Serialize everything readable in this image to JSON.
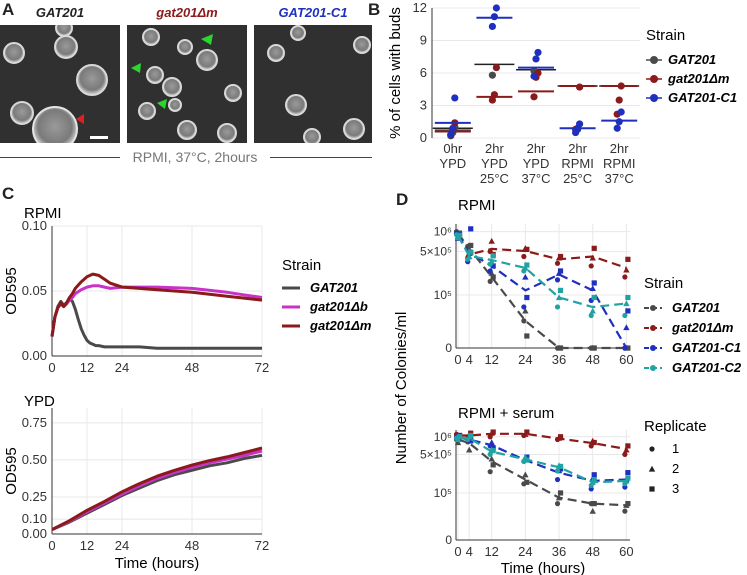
{
  "colors": {
    "wt": "#4a4a4a",
    "mut": "#8b1a1a",
    "c1": "#1f2fbf",
    "c2": "#22a3a3",
    "gatb": "#c832c8",
    "grid": "#e8e8e8"
  },
  "panelA": {
    "label": "A",
    "images": [
      {
        "title": "GAT201",
        "color": "#111111"
      },
      {
        "title": "gat201Δm",
        "color": "#8b1a1a"
      },
      {
        "title": "GAT201-C1",
        "color": "#1f2fbf"
      }
    ],
    "caption": "RPMI, 37°C, 2hours"
  },
  "panelB": {
    "label": "B",
    "chart_data": {
      "type": "scatter",
      "ylabel": "% of cells with buds",
      "ylim": [
        0,
        12
      ],
      "yticks": [
        "0",
        "3",
        "6",
        "9",
        "12"
      ],
      "categories": [
        "0hr YPD",
        "2hr YPD 25°C",
        "2hr YPD 37°C",
        "2hr RPMI 25°C",
        "2hr RPMI 37°C"
      ],
      "category_lines": [
        [
          "0hr",
          "YPD",
          ""
        ],
        [
          "2hr",
          "YPD",
          "25°C"
        ],
        [
          "2hr",
          "YPD",
          "37°C"
        ],
        [
          "2hr",
          "RPMI",
          "25°C"
        ],
        [
          "2hr",
          "RPMI",
          "37°C"
        ]
      ],
      "mean_overall": [
        0.9,
        6.8,
        6.3,
        4.8,
        4.8
      ],
      "series": [
        {
          "name": "GAT201",
          "means": [
            0.7,
            null,
            null,
            null,
            null
          ],
          "points": [
            [
              0.2,
              0.5,
              1.0
            ],
            [
              5.8
            ],
            [
              6.2
            ],
            [],
            []
          ]
        },
        {
          "name": "gat201Δm",
          "means": [
            0.6,
            3.8,
            4.3,
            4.8,
            4.8
          ],
          "points": [
            [
              0.3,
              0.8,
              1.4
            ],
            [
              3.5,
              4.0,
              6.5
            ],
            [
              3.8,
              5.6,
              6.0
            ],
            [
              0.8,
              0.9,
              4.7
            ],
            [
              2.2,
              3.5,
              4.8
            ]
          ]
        },
        {
          "name": "GAT201-C1",
          "means": [
            1.4,
            11.1,
            6.5,
            0.9,
            1.6
          ],
          "points": [
            [
              0.3,
              0.9,
              3.7
            ],
            [
              10.3,
              11.2,
              12.0
            ],
            [
              5.7,
              7.3,
              7.9
            ],
            [
              0.5,
              0.8,
              1.3
            ],
            [
              0.9,
              1.5,
              2.4
            ]
          ]
        }
      ],
      "legend_title": "Strain",
      "legend": [
        "GAT201",
        "gat201Δm",
        "GAT201-C1"
      ]
    }
  },
  "panelC": {
    "label": "C",
    "chart_data": [
      {
        "type": "line",
        "title": "RPMI",
        "ylabel": "OD595",
        "xlim": [
          0,
          72
        ],
        "ylim": [
          0,
          0.1
        ],
        "xticks": [
          "0",
          "12",
          "24",
          "48",
          "72"
        ],
        "yticks": [
          "0.00",
          "0.05",
          "0.10"
        ],
        "series": [
          {
            "name": "GAT201",
            "x": [
              0,
              1,
              2,
              3,
              4,
              5,
              6,
              7,
              8,
              9,
              10,
              11,
              12,
              13,
              14,
              15,
              16,
              18,
              20,
              24,
              30,
              36,
              48,
              60,
              72
            ],
            "y": [
              0.015,
              0.03,
              0.038,
              0.042,
              0.039,
              0.041,
              0.044,
              0.042,
              0.036,
              0.028,
              0.021,
              0.016,
              0.012,
              0.01,
              0.009,
              0.008,
              0.008,
              0.007,
              0.007,
              0.007,
              0.007,
              0.006,
              0.006,
              0.006,
              0.006
            ]
          },
          {
            "name": "gat201Δb",
            "x": [
              0,
              1,
              2,
              3,
              4,
              5,
              6,
              7,
              8,
              10,
              12,
              14,
              16,
              18,
              20,
              24,
              30,
              36,
              48,
              60,
              72
            ],
            "y": [
              0.015,
              0.03,
              0.037,
              0.04,
              0.038,
              0.04,
              0.043,
              0.045,
              0.048,
              0.051,
              0.053,
              0.054,
              0.054,
              0.053,
              0.052,
              0.053,
              0.053,
              0.053,
              0.052,
              0.049,
              0.045
            ]
          },
          {
            "name": "gat201Δm",
            "x": [
              0,
              1,
              2,
              3,
              4,
              5,
              6,
              7,
              8,
              10,
              12,
              14,
              16,
              18,
              20,
              24,
              30,
              36,
              48,
              60,
              72
            ],
            "y": [
              0.015,
              0.03,
              0.037,
              0.041,
              0.038,
              0.041,
              0.045,
              0.048,
              0.052,
              0.057,
              0.061,
              0.063,
              0.062,
              0.059,
              0.056,
              0.053,
              0.052,
              0.051,
              0.049,
              0.046,
              0.043
            ]
          }
        ]
      },
      {
        "type": "line",
        "title": "YPD",
        "ylabel": "OD595",
        "xlabel": "Time (hours)",
        "xlim": [
          0,
          72
        ],
        "ylim": [
          0,
          0.85
        ],
        "xticks": [
          "0",
          "12",
          "24",
          "48",
          "72"
        ],
        "yticks": [
          "0.00",
          "0.10",
          "0.25",
          "0.50",
          "0.75"
        ],
        "series": [
          {
            "name": "GAT201",
            "x": [
              0,
              6,
              12,
              18,
              24,
              30,
              36,
              42,
              48,
              54,
              60,
              66,
              72
            ],
            "y": [
              0.03,
              0.08,
              0.14,
              0.2,
              0.26,
              0.31,
              0.36,
              0.4,
              0.43,
              0.46,
              0.48,
              0.51,
              0.53
            ]
          },
          {
            "name": "gat201Δb",
            "x": [
              0,
              6,
              12,
              18,
              24,
              30,
              36,
              42,
              48,
              54,
              60,
              66,
              72
            ],
            "y": [
              0.03,
              0.085,
              0.15,
              0.21,
              0.27,
              0.325,
              0.375,
              0.415,
              0.45,
              0.48,
              0.505,
              0.53,
              0.56
            ]
          },
          {
            "name": "gat201Δm",
            "x": [
              0,
              6,
              12,
              18,
              24,
              30,
              36,
              42,
              48,
              54,
              60,
              66,
              72
            ],
            "y": [
              0.03,
              0.09,
              0.16,
              0.22,
              0.285,
              0.34,
              0.39,
              0.43,
              0.465,
              0.495,
              0.52,
              0.55,
              0.58
            ]
          }
        ]
      }
    ],
    "legend_title": "Strain",
    "legend": [
      "GAT201",
      "gat201Δb",
      "gat201Δm"
    ]
  },
  "panelD": {
    "label": "D",
    "ylabel": "Number of Colonies/ml",
    "xlabel": "Time (hours)",
    "xticks": [
      "0",
      "4",
      "12",
      "24",
      "36",
      "48",
      "60"
    ],
    "yticks": [
      "0",
      "10⁵",
      "5×10⁵",
      "10⁶"
    ],
    "chart_data": [
      {
        "type": "scatter",
        "title": "RPMI",
        "x": [
          0,
          4,
          12,
          24,
          36,
          48,
          60
        ],
        "series": [
          {
            "name": "GAT201",
            "means": [
              930000,
              560000,
              200000,
              30000,
              0,
              0,
              0
            ],
            "points": [
              [
                1000000,
                850000,
                950000
              ],
              [
                600000,
                480000,
                620000
              ],
              [
                170000,
                230000,
                200000
              ],
              [
                30000,
                50000,
                10000
              ],
              [
                0,
                0,
                0
              ],
              [
                0,
                0,
                0
              ],
              [
                0,
                0,
                0
              ]
            ]
          },
          {
            "name": "gat201Δm",
            "means": [
              880000,
              450000,
              550000,
              510000,
              380000,
              420000,
              280000
            ],
            "points": [
              [
                950000,
                820000,
                880000
              ],
              [
                400000,
                470000,
                480000
              ],
              [
                500000,
                720000,
                450000
              ],
              [
                420000,
                560000,
                540000
              ],
              [
                330000,
                400000,
                420000
              ],
              [
                300000,
                400000,
                560000
              ],
              [
                200000,
                260000,
                380000
              ]
            ]
          },
          {
            "name": "GAT201-C1",
            "means": [
              880000,
              480000,
              300000,
              120000,
              220000,
              120000,
              0
            ],
            "points": [
              [
                950000,
                800000,
                900000
              ],
              [
                350000,
                420000,
                1100000
              ],
              [
                250000,
                350000,
                300000
              ],
              [
                60000,
                200000,
                90000
              ],
              [
                180000,
                230000,
                250000
              ],
              [
                80000,
                130000,
                160000
              ],
              [
                0,
                20000,
                50000
              ]
            ]
          },
          {
            "name": "GAT201-C2",
            "means": [
              870000,
              430000,
              370000,
              280000,
              90000,
              60000,
              70000
            ],
            "points": [
              [
                900000,
                820000,
                880000
              ],
              [
                380000,
                420000,
                490000
              ],
              [
                320000,
                350000,
                430000
              ],
              [
                250000,
                280000,
                310000
              ],
              [
                60000,
                90000,
                120000
              ],
              [
                40000,
                50000,
                90000
              ],
              [
                40000,
                70000,
                90000
              ]
            ]
          }
        ]
      },
      {
        "type": "scatter",
        "title": "RPMI + serum",
        "x": [
          0,
          4,
          12,
          24,
          36,
          48,
          60
        ],
        "series": [
          {
            "name": "GAT201",
            "means": [
              900000,
              780000,
              380000,
              180000,
              80000,
              60000,
              55000
            ],
            "points": [
              [
                900000,
                800000,
                1050000
              ],
              [
                820000,
                600000,
                900000
              ],
              [
                250000,
                420000,
                330000
              ],
              [
                150000,
                220000,
                160000
              ],
              [
                60000,
                80000,
                100000
              ],
              [
                60000,
                40000,
                60000
              ],
              [
                40000,
                55000,
                60000
              ]
            ]
          },
          {
            "name": "gat201Δm",
            "means": [
              1050000,
              1050000,
              1120000,
              1120000,
              930000,
              780000,
              620000
            ],
            "points": [
              [
                1100000,
                1000000,
                1050000
              ],
              [
                950000,
                1100000,
                1150000
              ],
              [
                1000000,
                1150000,
                1200000
              ],
              [
                1050000,
                1100000,
                1200000
              ],
              [
                900000,
                950000,
                1000000
              ],
              [
                700000,
                850000,
                800000
              ],
              [
                500000,
                600000,
                700000
              ]
            ]
          },
          {
            "name": "GAT201-C1",
            "means": [
              980000,
              900000,
              720000,
              400000,
              240000,
              170000,
              180000
            ],
            "points": [
              [
                1000000,
                950000,
                1050000
              ],
              [
                900000,
                1050000,
                850000
              ],
              [
                700000,
                800000,
                650000
              ],
              [
                380000,
                420000,
                450000
              ],
              [
                180000,
                260000,
                280000
              ],
              [
                120000,
                190000,
                220000
              ],
              [
                130000,
                180000,
                240000
              ]
            ]
          },
          {
            "name": "GAT201-C2",
            "means": [
              960000,
              950000,
              560000,
              410000,
              300000,
              160000,
              170000
            ],
            "points": [
              [
                950000,
                900000,
                1000000
              ],
              [
                900000,
                1000000,
                1050000
              ],
              [
                500000,
                600000,
                580000
              ],
              [
                380000,
                450000,
                400000
              ],
              [
                260000,
                320000,
                310000
              ],
              [
                140000,
                160000,
                180000
              ],
              [
                150000,
                170000,
                190000
              ]
            ]
          }
        ]
      }
    ],
    "legend_title": "Strain",
    "legend": [
      "GAT201",
      "gat201Δm",
      "GAT201-C1",
      "GAT201-C2"
    ],
    "replicate_title": "Replicate",
    "replicates": [
      "1",
      "2",
      "3"
    ]
  }
}
